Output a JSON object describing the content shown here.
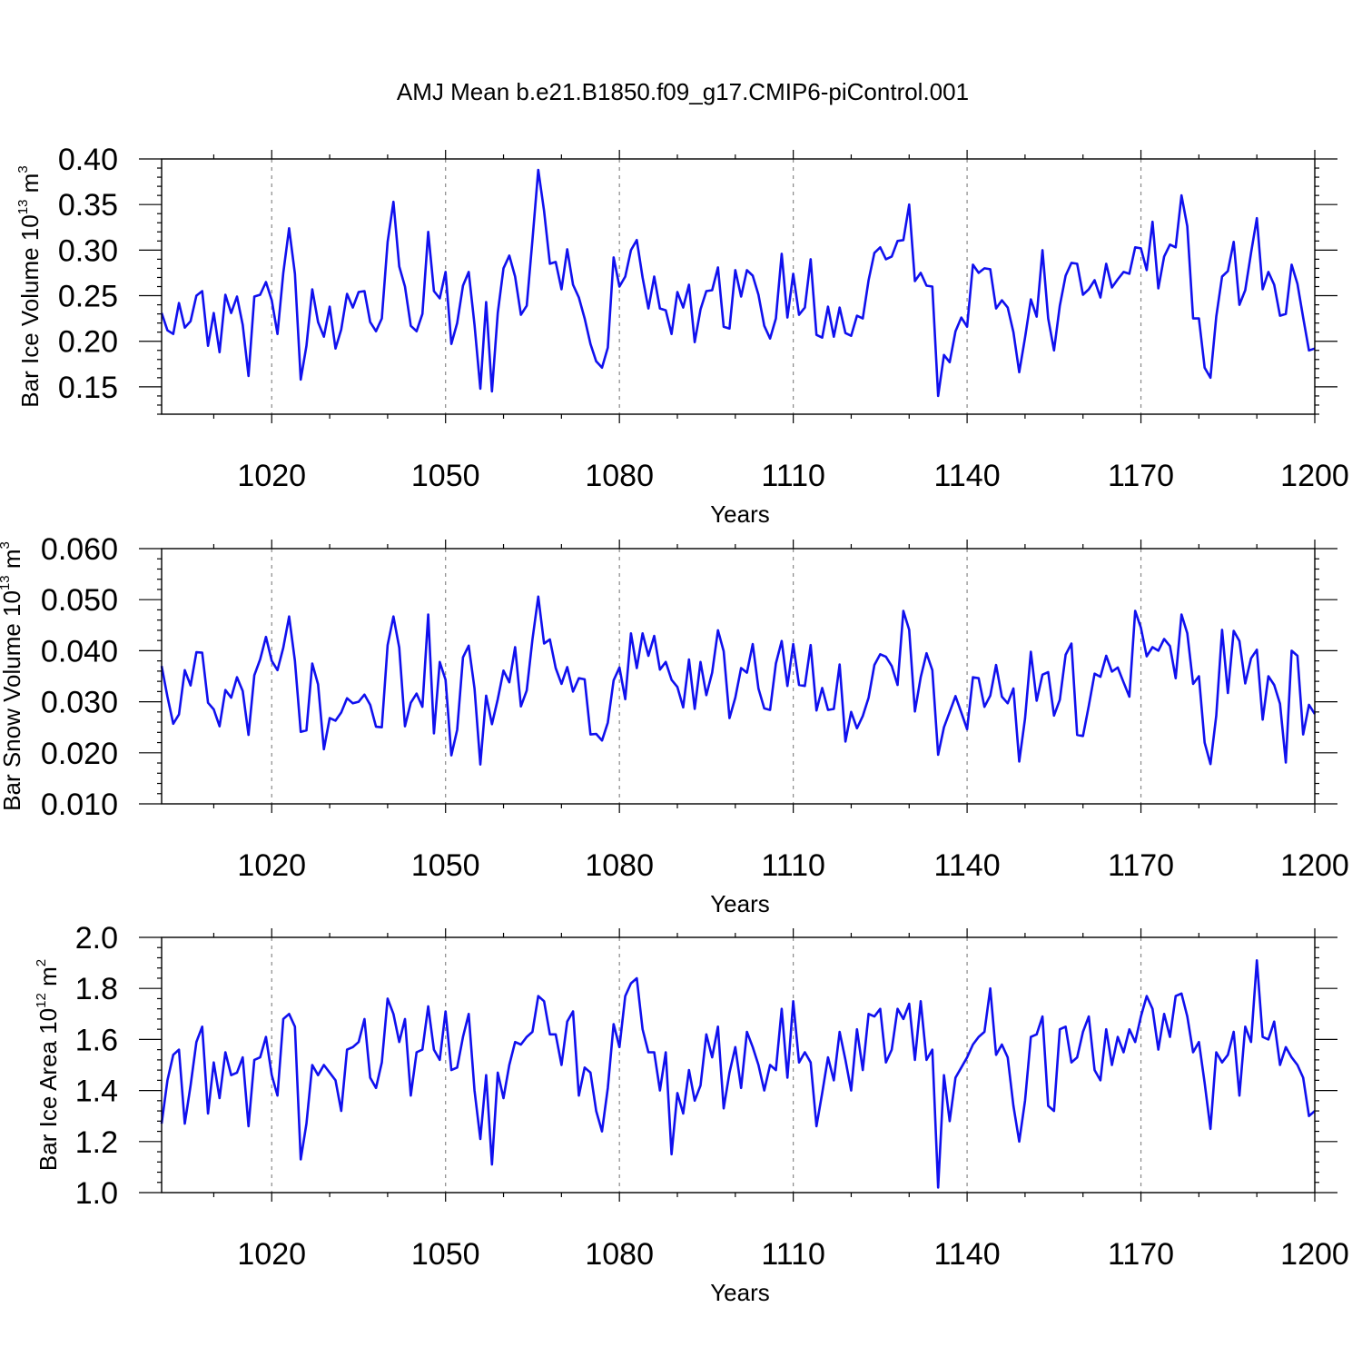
{
  "figure": {
    "title": "AMJ Mean b.e21.B1850.f09_g17.CMIP6-piControl.001",
    "line_color": "#1010ee",
    "grid_color": "#888888"
  },
  "chart_data": [
    {
      "type": "line",
      "title": "AMJ Mean b.e21.B1850.f09_g17.CMIP6-piControl.001",
      "ylabel": {
        "text": "Bar Ice Volume 10",
        "exp": "13",
        "unit": " m",
        "unit_exp": "3"
      },
      "xlabel": "Years",
      "xlim": [
        1001,
        1200
      ],
      "ylim": [
        0.12,
        0.4
      ],
      "xticks": [
        1020,
        1050,
        1080,
        1110,
        1140,
        1170,
        1200
      ],
      "xtick_labels": [
        "1020",
        "1050",
        "1080",
        "1110",
        "1140",
        "1170",
        "1200"
      ],
      "yticks": [
        0.15,
        0.2,
        0.25,
        0.3,
        0.35,
        0.4
      ],
      "ytick_labels": [
        "0.15",
        "0.20",
        "0.25",
        "0.30",
        "0.35",
        "0.40"
      ],
      "grid": "vertical dashed at major x ticks",
      "x_start": 1001,
      "values": [
        0.231,
        0.212,
        0.208,
        0.242,
        0.215,
        0.222,
        0.25,
        0.255,
        0.195,
        0.231,
        0.188,
        0.251,
        0.231,
        0.249,
        0.218,
        0.162,
        0.249,
        0.251,
        0.265,
        0.245,
        0.208,
        0.275,
        0.324,
        0.274,
        0.158,
        0.195,
        0.257,
        0.221,
        0.205,
        0.238,
        0.192,
        0.213,
        0.252,
        0.237,
        0.254,
        0.255,
        0.221,
        0.211,
        0.225,
        0.309,
        0.353,
        0.282,
        0.26,
        0.217,
        0.211,
        0.23,
        0.32,
        0.255,
        0.247,
        0.276,
        0.197,
        0.22,
        0.261,
        0.276,
        0.218,
        0.148,
        0.243,
        0.145,
        0.231,
        0.28,
        0.294,
        0.271,
        0.229,
        0.239,
        0.311,
        0.388,
        0.343,
        0.285,
        0.287,
        0.257,
        0.301,
        0.262,
        0.248,
        0.225,
        0.197,
        0.178,
        0.171,
        0.193,
        0.292,
        0.26,
        0.271,
        0.3,
        0.311,
        0.27,
        0.236,
        0.271,
        0.236,
        0.234,
        0.208,
        0.254,
        0.237,
        0.262,
        0.199,
        0.235,
        0.255,
        0.256,
        0.281,
        0.216,
        0.214,
        0.278,
        0.249,
        0.278,
        0.272,
        0.251,
        0.217,
        0.203,
        0.225,
        0.296,
        0.226,
        0.274,
        0.229,
        0.237,
        0.29,
        0.207,
        0.204,
        0.238,
        0.205,
        0.237,
        0.209,
        0.206,
        0.228,
        0.225,
        0.267,
        0.297,
        0.303,
        0.29,
        0.293,
        0.31,
        0.311,
        0.35,
        0.266,
        0.275,
        0.261,
        0.26,
        0.14,
        0.185,
        0.177,
        0.211,
        0.226,
        0.216,
        0.284,
        0.275,
        0.28,
        0.279,
        0.236,
        0.245,
        0.237,
        0.21,
        0.166,
        0.204,
        0.246,
        0.227,
        0.3,
        0.225,
        0.19,
        0.239,
        0.272,
        0.286,
        0.285,
        0.251,
        0.257,
        0.267,
        0.248,
        0.285,
        0.259,
        0.268,
        0.276,
        0.274,
        0.303,
        0.302,
        0.278,
        0.331,
        0.258,
        0.293,
        0.306,
        0.303,
        0.36,
        0.326,
        0.225,
        0.225,
        0.171,
        0.16,
        0.227,
        0.271,
        0.277,
        0.309,
        0.24,
        0.256,
        0.297,
        0.335,
        0.257,
        0.276,
        0.262,
        0.228,
        0.23,
        0.284,
        0.263,
        0.226,
        0.19,
        0.192
      ]
    },
    {
      "type": "line",
      "ylabel": {
        "text": "Bar Snow Volume 10",
        "exp": "13",
        "unit": " m",
        "unit_exp": "3"
      },
      "xlabel": "Years",
      "xlim": [
        1001,
        1200
      ],
      "ylim": [
        0.01,
        0.06
      ],
      "xticks": [
        1020,
        1050,
        1080,
        1110,
        1140,
        1170,
        1200
      ],
      "xtick_labels": [
        "1020",
        "1050",
        "1080",
        "1110",
        "1140",
        "1170",
        "1200"
      ],
      "yticks": [
        0.01,
        0.02,
        0.03,
        0.04,
        0.05,
        0.06
      ],
      "ytick_labels": [
        "0.010",
        "0.020",
        "0.030",
        "0.040",
        "0.050",
        "0.060"
      ],
      "grid": "vertical dashed at major x ticks",
      "x_start": 1001,
      "values": [
        0.037,
        0.031,
        0.0257,
        0.0275,
        0.0362,
        0.0332,
        0.0397,
        0.0396,
        0.0298,
        0.0285,
        0.0252,
        0.0323,
        0.0308,
        0.0348,
        0.0321,
        0.0235,
        0.0352,
        0.0383,
        0.0427,
        0.038,
        0.0362,
        0.0406,
        0.0467,
        0.038,
        0.0241,
        0.0244,
        0.0375,
        0.0334,
        0.0207,
        0.0268,
        0.0263,
        0.0279,
        0.0307,
        0.0297,
        0.03,
        0.0314,
        0.0294,
        0.0251,
        0.025,
        0.0411,
        0.0467,
        0.0406,
        0.0252,
        0.0298,
        0.0316,
        0.029,
        0.0471,
        0.0238,
        0.0378,
        0.0343,
        0.0195,
        0.0245,
        0.0387,
        0.041,
        0.0326,
        0.0177,
        0.0312,
        0.0256,
        0.0305,
        0.0361,
        0.0338,
        0.0407,
        0.0291,
        0.0322,
        0.0422,
        0.0506,
        0.0414,
        0.0422,
        0.0366,
        0.0335,
        0.0368,
        0.032,
        0.0346,
        0.0344,
        0.0236,
        0.0237,
        0.0224,
        0.0259,
        0.0342,
        0.0367,
        0.0305,
        0.0434,
        0.0366,
        0.0434,
        0.039,
        0.0429,
        0.0363,
        0.0378,
        0.0343,
        0.0329,
        0.0289,
        0.0383,
        0.0286,
        0.0378,
        0.0313,
        0.0357,
        0.044,
        0.0399,
        0.0268,
        0.0308,
        0.0366,
        0.0357,
        0.0413,
        0.0326,
        0.0287,
        0.0284,
        0.0375,
        0.0419,
        0.0331,
        0.0413,
        0.0333,
        0.0331,
        0.0411,
        0.0283,
        0.0327,
        0.0284,
        0.0286,
        0.0373,
        0.0222,
        0.028,
        0.0248,
        0.0272,
        0.0308,
        0.0372,
        0.0393,
        0.0388,
        0.037,
        0.0333,
        0.0478,
        0.0441,
        0.0281,
        0.0348,
        0.0395,
        0.0362,
        0.0196,
        0.025,
        0.028,
        0.0311,
        0.0279,
        0.0246,
        0.0348,
        0.0346,
        0.029,
        0.0312,
        0.0372,
        0.031,
        0.0297,
        0.0326,
        0.0183,
        0.0267,
        0.0398,
        0.0302,
        0.0353,
        0.0358,
        0.0273,
        0.0304,
        0.0392,
        0.0414,
        0.0235,
        0.0233,
        0.0292,
        0.0355,
        0.0349,
        0.039,
        0.0359,
        0.0367,
        0.0338,
        0.031,
        0.0478,
        0.0445,
        0.0389,
        0.0407,
        0.04,
        0.0423,
        0.0409,
        0.0346,
        0.0471,
        0.0434,
        0.0335,
        0.035,
        0.022,
        0.0178,
        0.0273,
        0.0441,
        0.0317,
        0.0439,
        0.0419,
        0.0336,
        0.0385,
        0.0402,
        0.0265,
        0.035,
        0.0333,
        0.0296,
        0.0181,
        0.04,
        0.039,
        0.0236,
        0.0294,
        0.0276
      ]
    },
    {
      "type": "line",
      "ylabel": {
        "text": "Bar Ice Area 10",
        "exp": "12",
        "unit": " m",
        "unit_exp": "2"
      },
      "xlabel": "Years",
      "xlim": [
        1001,
        1200
      ],
      "ylim": [
        1.0,
        2.0
      ],
      "xticks": [
        1020,
        1050,
        1080,
        1110,
        1140,
        1170,
        1200
      ],
      "xtick_labels": [
        "1020",
        "1050",
        "1080",
        "1110",
        "1140",
        "1170",
        "1200"
      ],
      "yticks": [
        1.0,
        1.2,
        1.4,
        1.6,
        1.8,
        2.0
      ],
      "ytick_labels": [
        "1.0",
        "1.2",
        "1.4",
        "1.6",
        "1.8",
        "2.0"
      ],
      "grid": "vertical dashed at major x ticks",
      "x_start": 1001,
      "values": [
        1.27,
        1.44,
        1.54,
        1.56,
        1.27,
        1.42,
        1.59,
        1.65,
        1.31,
        1.51,
        1.37,
        1.55,
        1.46,
        1.47,
        1.53,
        1.26,
        1.52,
        1.53,
        1.61,
        1.46,
        1.38,
        1.68,
        1.7,
        1.65,
        1.13,
        1.27,
        1.5,
        1.46,
        1.5,
        1.47,
        1.44,
        1.32,
        1.56,
        1.57,
        1.59,
        1.68,
        1.45,
        1.41,
        1.51,
        1.76,
        1.7,
        1.59,
        1.68,
        1.38,
        1.55,
        1.56,
        1.73,
        1.56,
        1.52,
        1.71,
        1.48,
        1.49,
        1.61,
        1.7,
        1.4,
        1.21,
        1.46,
        1.11,
        1.47,
        1.37,
        1.5,
        1.59,
        1.58,
        1.61,
        1.63,
        1.77,
        1.75,
        1.62,
        1.62,
        1.5,
        1.67,
        1.71,
        1.38,
        1.49,
        1.47,
        1.32,
        1.24,
        1.41,
        1.66,
        1.57,
        1.77,
        1.82,
        1.84,
        1.64,
        1.55,
        1.55,
        1.4,
        1.55,
        1.15,
        1.39,
        1.31,
        1.48,
        1.36,
        1.42,
        1.62,
        1.53,
        1.65,
        1.33,
        1.47,
        1.57,
        1.41,
        1.63,
        1.57,
        1.5,
        1.4,
        1.5,
        1.48,
        1.72,
        1.45,
        1.75,
        1.51,
        1.55,
        1.51,
        1.26,
        1.39,
        1.53,
        1.44,
        1.63,
        1.52,
        1.4,
        1.64,
        1.48,
        1.7,
        1.69,
        1.72,
        1.51,
        1.56,
        1.72,
        1.68,
        1.74,
        1.52,
        1.75,
        1.52,
        1.56,
        1.02,
        1.46,
        1.28,
        1.45,
        1.49,
        1.53,
        1.58,
        1.61,
        1.63,
        1.8,
        1.54,
        1.58,
        1.53,
        1.34,
        1.2,
        1.36,
        1.61,
        1.62,
        1.69,
        1.34,
        1.32,
        1.64,
        1.65,
        1.51,
        1.53,
        1.63,
        1.69,
        1.48,
        1.44,
        1.64,
        1.5,
        1.61,
        1.55,
        1.64,
        1.59,
        1.69,
        1.77,
        1.72,
        1.56,
        1.7,
        1.61,
        1.77,
        1.78,
        1.69,
        1.55,
        1.59,
        1.43,
        1.25,
        1.55,
        1.51,
        1.54,
        1.63,
        1.38,
        1.65,
        1.59,
        1.91,
        1.61,
        1.6,
        1.67,
        1.5,
        1.57,
        1.53,
        1.5,
        1.45,
        1.3,
        1.32
      ]
    }
  ]
}
